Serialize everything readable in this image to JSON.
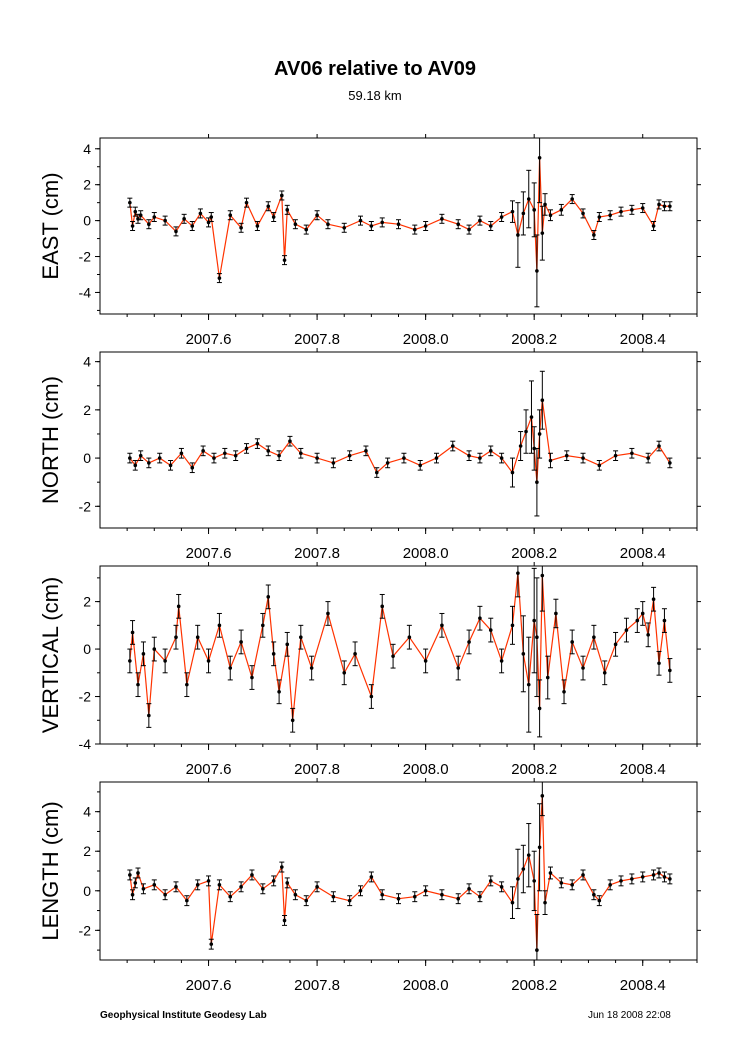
{
  "title": "AV06 relative to AV09",
  "subtitle": "59.18 km",
  "footer": {
    "left": "Geophysical Institute Geodesy Lab",
    "right": "Jun 18 2008 22:08"
  },
  "colors": {
    "line": "#ff3300",
    "point": "#000000",
    "frame": "#000000"
  },
  "chart_data": [
    {
      "type": "line",
      "ylabel": "EAST (cm)",
      "xlim": [
        2007.4,
        2008.5
      ],
      "ylim": [
        -5.2,
        4.6
      ],
      "yticks": [
        -4,
        -2,
        0,
        2,
        4
      ],
      "xticks": [
        2007.6,
        2007.8,
        2008.0,
        2008.2,
        2008.4
      ],
      "xtick_labels": [
        "2007.6",
        "2007.8",
        "2008.0",
        "2008.2",
        "2008.4"
      ],
      "x": [
        2007.455,
        2007.46,
        2007.465,
        2007.47,
        2007.475,
        2007.49,
        2007.5,
        2007.52,
        2007.54,
        2007.555,
        2007.57,
        2007.585,
        2007.6,
        2007.605,
        2007.62,
        2007.64,
        2007.66,
        2007.67,
        2007.69,
        2007.71,
        2007.72,
        2007.735,
        2007.74,
        2007.745,
        2007.76,
        2007.78,
        2007.8,
        2007.82,
        2007.85,
        2007.88,
        2007.9,
        2007.92,
        2007.95,
        2007.98,
        2008.0,
        2008.03,
        2008.06,
        2008.08,
        2008.1,
        2008.12,
        2008.14,
        2008.16,
        2008.17,
        2008.18,
        2008.19,
        2008.2,
        2008.205,
        2008.21,
        2008.215,
        2008.22,
        2008.23,
        2008.25,
        2008.27,
        2008.29,
        2008.31,
        2008.32,
        2008.34,
        2008.36,
        2008.38,
        2008.4,
        2008.42,
        2008.43,
        2008.44,
        2008.45
      ],
      "values": [
        1.0,
        -0.3,
        0.5,
        0.1,
        0.3,
        -0.2,
        0.2,
        0.0,
        -0.6,
        0.1,
        -0.3,
        0.4,
        -0.1,
        0.2,
        -3.2,
        0.3,
        -0.4,
        1.0,
        -0.3,
        0.8,
        0.2,
        1.4,
        -2.2,
        0.6,
        -0.2,
        -0.5,
        0.3,
        -0.2,
        -0.4,
        0.0,
        -0.3,
        -0.1,
        -0.2,
        -0.5,
        -0.3,
        0.1,
        -0.2,
        -0.5,
        0.0,
        -0.3,
        0.2,
        0.5,
        -0.8,
        0.4,
        1.2,
        0.6,
        -2.8,
        3.5,
        -0.7,
        0.9,
        0.3,
        0.6,
        1.2,
        0.4,
        -0.8,
        0.2,
        0.3,
        0.5,
        0.6,
        0.7,
        -0.3,
        0.9,
        0.8,
        0.8
      ],
      "errors": [
        0.25,
        0.25,
        0.25,
        0.25,
        0.25,
        0.25,
        0.25,
        0.25,
        0.25,
        0.25,
        0.25,
        0.25,
        0.25,
        0.25,
        0.25,
        0.25,
        0.25,
        0.25,
        0.25,
        0.25,
        0.25,
        0.25,
        0.25,
        0.25,
        0.25,
        0.25,
        0.25,
        0.25,
        0.25,
        0.25,
        0.25,
        0.25,
        0.25,
        0.25,
        0.25,
        0.25,
        0.25,
        0.25,
        0.25,
        0.25,
        0.25,
        0.6,
        1.8,
        1.2,
        1.6,
        1.5,
        2.0,
        2.5,
        1.5,
        0.6,
        0.3,
        0.3,
        0.25,
        0.25,
        0.25,
        0.25,
        0.25,
        0.25,
        0.25,
        0.25,
        0.25,
        0.25,
        0.25,
        0.25
      ]
    },
    {
      "type": "line",
      "ylabel": "NORTH (cm)",
      "xlim": [
        2007.4,
        2008.5
      ],
      "ylim": [
        -2.9,
        4.4
      ],
      "yticks": [
        -2,
        0,
        2,
        4
      ],
      "xticks": [
        2007.6,
        2007.8,
        2008.0,
        2008.2,
        2008.4
      ],
      "xtick_labels": [
        "2007.6",
        "2007.8",
        "2008.0",
        "2008.2",
        "2008.4"
      ],
      "x": [
        2007.455,
        2007.465,
        2007.475,
        2007.49,
        2007.51,
        2007.53,
        2007.55,
        2007.57,
        2007.59,
        2007.61,
        2007.63,
        2007.65,
        2007.67,
        2007.69,
        2007.71,
        2007.73,
        2007.75,
        2007.77,
        2007.8,
        2007.83,
        2007.86,
        2007.89,
        2007.91,
        2007.93,
        2007.96,
        2007.99,
        2008.02,
        2008.05,
        2008.08,
        2008.1,
        2008.12,
        2008.14,
        2008.16,
        2008.175,
        2008.185,
        2008.195,
        2008.2,
        2008.205,
        2008.21,
        2008.215,
        2008.23,
        2008.26,
        2008.29,
        2008.32,
        2008.35,
        2008.38,
        2008.41,
        2008.43,
        2008.45
      ],
      "values": [
        0.0,
        -0.3,
        0.1,
        -0.2,
        0.0,
        -0.3,
        0.2,
        -0.4,
        0.3,
        0.0,
        0.2,
        0.1,
        0.4,
        0.6,
        0.3,
        0.1,
        0.7,
        0.2,
        0.0,
        -0.2,
        0.1,
        0.3,
        -0.6,
        -0.2,
        0.0,
        -0.3,
        0.0,
        0.5,
        0.1,
        0.0,
        0.3,
        0.0,
        -0.6,
        0.5,
        1.1,
        1.7,
        0.4,
        -1.0,
        1.0,
        2.4,
        -0.1,
        0.1,
        0.0,
        -0.3,
        0.1,
        0.2,
        0.0,
        0.5,
        -0.2
      ],
      "errors": [
        0.2,
        0.2,
        0.2,
        0.2,
        0.2,
        0.2,
        0.2,
        0.2,
        0.2,
        0.2,
        0.2,
        0.2,
        0.2,
        0.2,
        0.2,
        0.2,
        0.2,
        0.2,
        0.2,
        0.2,
        0.2,
        0.2,
        0.2,
        0.2,
        0.2,
        0.2,
        0.2,
        0.2,
        0.2,
        0.2,
        0.2,
        0.2,
        0.6,
        0.6,
        0.9,
        1.5,
        0.9,
        1.4,
        1.0,
        1.2,
        0.3,
        0.2,
        0.2,
        0.2,
        0.2,
        0.2,
        0.2,
        0.2,
        0.2
      ]
    },
    {
      "type": "line",
      "ylabel": "VERTICAL (cm)",
      "xlim": [
        2007.4,
        2008.5
      ],
      "ylim": [
        -4.0,
        3.5
      ],
      "yticks": [
        -4,
        -2,
        0,
        2
      ],
      "xticks": [
        2007.6,
        2007.8,
        2008.0,
        2008.2,
        2008.4
      ],
      "xtick_labels": [
        "2007.6",
        "2007.8",
        "2008.0",
        "2008.2",
        "2008.4"
      ],
      "x": [
        2007.455,
        2007.46,
        2007.47,
        2007.48,
        2007.49,
        2007.5,
        2007.52,
        2007.54,
        2007.545,
        2007.56,
        2007.58,
        2007.6,
        2007.62,
        2007.64,
        2007.66,
        2007.68,
        2007.7,
        2007.71,
        2007.72,
        2007.73,
        2007.745,
        2007.755,
        2007.77,
        2007.79,
        2007.82,
        2007.85,
        2007.87,
        2007.9,
        2007.92,
        2007.94,
        2007.97,
        2008.0,
        2008.03,
        2008.06,
        2008.08,
        2008.1,
        2008.12,
        2008.14,
        2008.16,
        2008.17,
        2008.18,
        2008.19,
        2008.2,
        2008.205,
        2008.21,
        2008.215,
        2008.225,
        2008.24,
        2008.255,
        2008.27,
        2008.29,
        2008.31,
        2008.33,
        2008.35,
        2008.37,
        2008.39,
        2008.4,
        2008.41,
        2008.42,
        2008.43,
        2008.44,
        2008.45
      ],
      "values": [
        -0.5,
        0.7,
        -1.5,
        -0.2,
        -2.8,
        0.0,
        -0.5,
        0.5,
        1.8,
        -1.5,
        0.5,
        -0.5,
        1.0,
        -0.8,
        0.3,
        -1.2,
        1.0,
        2.2,
        -0.2,
        -1.8,
        0.2,
        -3.0,
        0.5,
        -0.8,
        1.5,
        -1.0,
        -0.2,
        -2.0,
        1.8,
        -0.3,
        0.5,
        -0.5,
        1.0,
        -0.8,
        0.3,
        1.3,
        0.8,
        -0.5,
        1.0,
        3.2,
        -0.2,
        -1.5,
        1.2,
        0.5,
        -2.5,
        3.1,
        -1.2,
        1.5,
        -1.8,
        0.3,
        -0.8,
        0.5,
        -1.0,
        0.2,
        0.8,
        1.2,
        1.5,
        0.6,
        2.1,
        -0.6,
        1.2,
        -0.9
      ],
      "errors": [
        0.5,
        0.5,
        0.5,
        0.5,
        0.5,
        0.5,
        0.5,
        0.5,
        0.5,
        0.5,
        0.5,
        0.5,
        0.5,
        0.5,
        0.5,
        0.5,
        0.5,
        0.5,
        0.5,
        0.5,
        0.5,
        0.5,
        0.5,
        0.5,
        0.5,
        0.5,
        0.5,
        0.5,
        0.5,
        0.5,
        0.5,
        0.5,
        0.5,
        0.5,
        0.5,
        0.5,
        0.5,
        0.5,
        0.8,
        1.0,
        1.6,
        2.0,
        2.2,
        2.5,
        1.2,
        1.5,
        0.9,
        0.6,
        0.5,
        0.5,
        0.5,
        0.5,
        0.5,
        0.5,
        0.5,
        0.5,
        0.5,
        0.5,
        0.5,
        0.5,
        0.5,
        0.5
      ]
    },
    {
      "type": "line",
      "ylabel": "LENGTH (cm)",
      "xlim": [
        2007.4,
        2008.5
      ],
      "ylim": [
        -3.5,
        5.5
      ],
      "yticks": [
        -2,
        0,
        2,
        4
      ],
      "xticks": [
        2007.6,
        2007.8,
        2008.0,
        2008.2,
        2008.4
      ],
      "xtick_labels": [
        "2007.6",
        "2007.8",
        "2008.0",
        "2008.2",
        "2008.4"
      ],
      "x": [
        2007.455,
        2007.46,
        2007.465,
        2007.47,
        2007.48,
        2007.5,
        2007.52,
        2007.54,
        2007.56,
        2007.58,
        2007.6,
        2007.605,
        2007.62,
        2007.64,
        2007.66,
        2007.68,
        2007.7,
        2007.72,
        2007.735,
        2007.74,
        2007.745,
        2007.76,
        2007.78,
        2007.8,
        2007.83,
        2007.86,
        2007.88,
        2007.9,
        2007.92,
        2007.95,
        2007.98,
        2008.0,
        2008.03,
        2008.06,
        2008.08,
        2008.1,
        2008.12,
        2008.14,
        2008.16,
        2008.17,
        2008.18,
        2008.19,
        2008.2,
        2008.205,
        2008.21,
        2008.215,
        2008.22,
        2008.23,
        2008.25,
        2008.27,
        2008.29,
        2008.31,
        2008.32,
        2008.34,
        2008.36,
        2008.38,
        2008.4,
        2008.42,
        2008.43,
        2008.44,
        2008.45
      ],
      "values": [
        0.8,
        -0.2,
        0.4,
        0.9,
        0.1,
        0.3,
        -0.2,
        0.2,
        -0.5,
        0.3,
        0.5,
        -2.7,
        0.3,
        -0.3,
        0.2,
        0.8,
        0.1,
        0.5,
        1.2,
        -1.5,
        0.4,
        -0.2,
        -0.5,
        0.2,
        -0.3,
        -0.5,
        0.0,
        0.7,
        -0.2,
        -0.4,
        -0.3,
        0.0,
        -0.2,
        -0.4,
        0.1,
        -0.3,
        0.5,
        0.2,
        -0.6,
        0.6,
        1.1,
        1.8,
        0.5,
        -3.0,
        2.2,
        4.8,
        -0.6,
        0.9,
        0.4,
        0.3,
        0.8,
        -0.2,
        -0.5,
        0.3,
        0.5,
        0.6,
        0.7,
        0.8,
        0.9,
        0.7,
        0.6
      ],
      "errors": [
        0.25,
        0.25,
        0.25,
        0.25,
        0.25,
        0.25,
        0.25,
        0.25,
        0.25,
        0.25,
        0.25,
        0.25,
        0.25,
        0.25,
        0.25,
        0.25,
        0.25,
        0.25,
        0.25,
        0.25,
        0.25,
        0.25,
        0.25,
        0.25,
        0.25,
        0.25,
        0.25,
        0.25,
        0.25,
        0.25,
        0.25,
        0.25,
        0.25,
        0.25,
        0.25,
        0.25,
        0.25,
        0.25,
        0.8,
        1.5,
        1.2,
        1.6,
        1.5,
        1.8,
        2.2,
        1.0,
        0.6,
        0.3,
        0.25,
        0.25,
        0.25,
        0.25,
        0.25,
        0.25,
        0.25,
        0.25,
        0.25,
        0.25,
        0.25,
        0.25,
        0.25
      ]
    }
  ]
}
